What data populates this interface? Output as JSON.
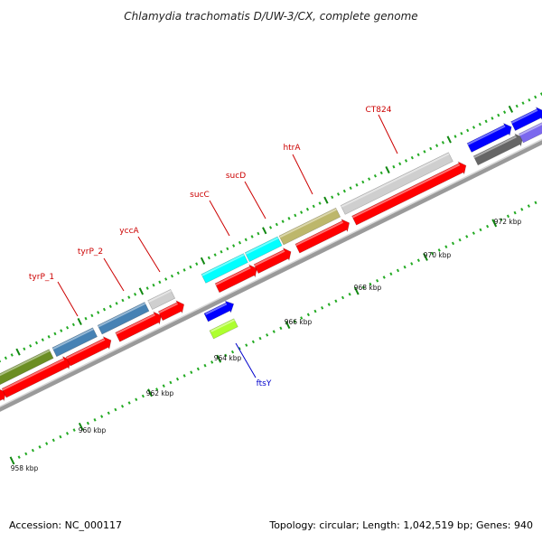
{
  "title": "Chlamydia trachomatis D/UW-3/CX, complete genome",
  "footer": {
    "accession": "Accession: NC_000117",
    "summary": "Topology: circular; Length: 1,042,519 bp; Genes: 940"
  },
  "gene_labels": [
    {
      "id": "tyrP_1",
      "text": "tyrP_1",
      "color": "#cc0000"
    },
    {
      "id": "tyrP_2",
      "text": "tyrP_2",
      "color": "#cc0000"
    },
    {
      "id": "yccA",
      "text": "yccA",
      "color": "#cc0000"
    },
    {
      "id": "sucC",
      "text": "sucC",
      "color": "#cc0000"
    },
    {
      "id": "sucD",
      "text": "sucD",
      "color": "#cc0000"
    },
    {
      "id": "htrA",
      "text": "htrA",
      "color": "#cc0000"
    },
    {
      "id": "CT824",
      "text": "CT824",
      "color": "#cc0000"
    },
    {
      "id": "ftsY",
      "text": "ftsY",
      "color": "#0000cc"
    }
  ],
  "kbp_labels": [
    "958 kbp",
    "960 kbp",
    "962 kbp",
    "964 kbp",
    "966 kbp",
    "968 kbp",
    "970 kbp",
    "972 kbp"
  ],
  "colors": {
    "cds": "#ff0000",
    "backbone": "#9a9a9a",
    "tick_major": "#118811",
    "tick_minor": "#22aa22",
    "olive": "#6b8e23",
    "steelblue": "#4682b4",
    "lightgray": "#cfcfcf",
    "cyan": "#00ffff",
    "khaki": "#bdb76b",
    "blue": "#0000ff",
    "greenyellow": "#adff2f",
    "darkgray": "#666666",
    "slateblue": "#7b68ee"
  }
}
